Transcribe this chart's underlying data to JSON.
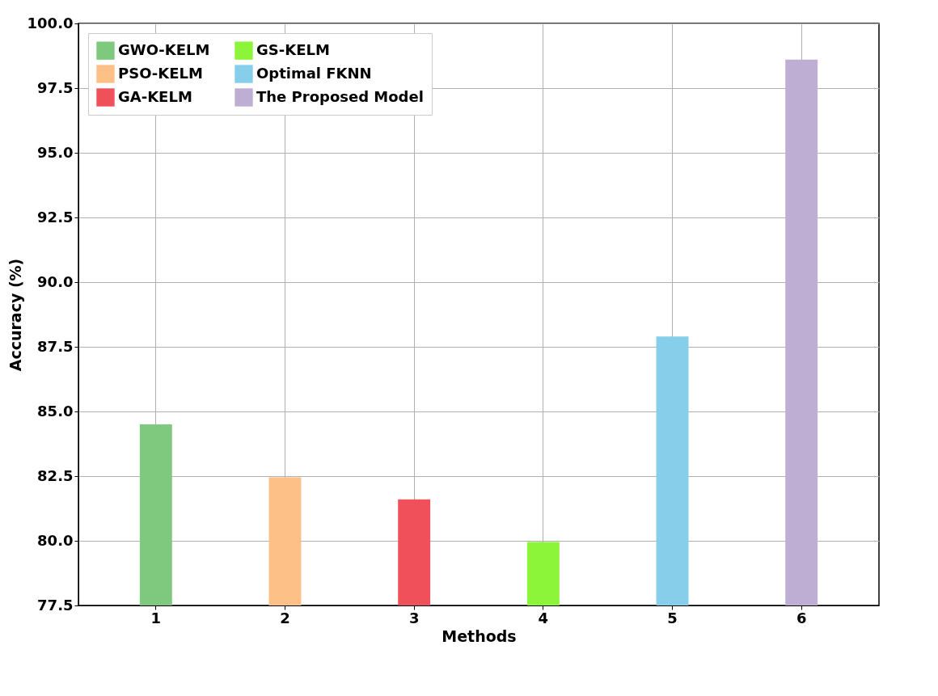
{
  "chart_data": {
    "type": "bar",
    "xlabel": "Methods",
    "ylabel": "Accuracy (%)",
    "categories": [
      "1",
      "2",
      "3",
      "4",
      "5",
      "6"
    ],
    "series": [
      {
        "name": "GWO-KELM",
        "color": "#7fc97f",
        "values": [
          84.5,
          null,
          null,
          null,
          null,
          null
        ]
      },
      {
        "name": "PSO-KELM",
        "color": "#fdc086",
        "values": [
          null,
          82.45,
          null,
          null,
          null,
          null
        ]
      },
      {
        "name": "GA-KELM",
        "color": "#f0505a",
        "values": [
          null,
          null,
          81.6,
          null,
          null,
          null
        ]
      },
      {
        "name": "GS-KELM",
        "color": "#8cf53a",
        "values": [
          null,
          null,
          null,
          79.95,
          null,
          null
        ]
      },
      {
        "name": "Optimal FKNN",
        "color": "#87ceeb",
        "values": [
          null,
          null,
          null,
          null,
          87.9,
          null
        ]
      },
      {
        "name": "The Proposed Model",
        "color": "#beaed4",
        "values": [
          null,
          null,
          null,
          null,
          null,
          98.6
        ]
      }
    ],
    "ylim": [
      77.5,
      100
    ],
    "yticks": [
      77.5,
      {
        "value": 80,
        "label": "80.0"
      },
      82.5,
      {
        "value": 85,
        "label": "85.0"
      },
      87.5,
      {
        "value": 90,
        "label": "90.0"
      },
      92.5,
      {
        "value": 95,
        "label": "95.0"
      },
      97.5,
      {
        "value": 100,
        "label": "100.0"
      }
    ],
    "grid": true,
    "legend": "top left"
  }
}
